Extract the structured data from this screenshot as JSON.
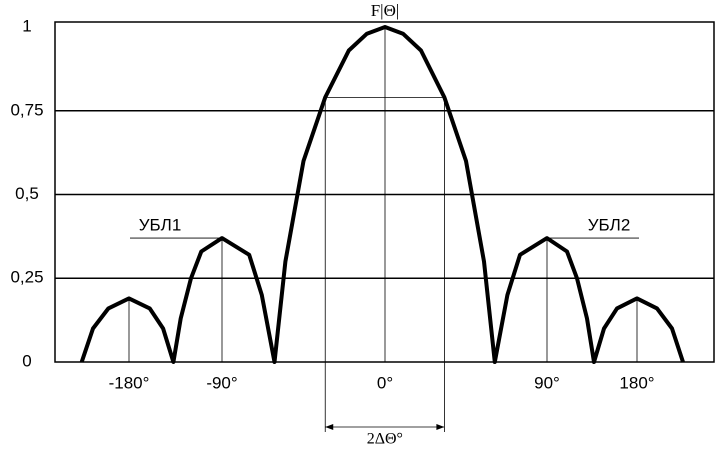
{
  "chart_data": {
    "type": "line",
    "title": "F|Θ|",
    "x": [
      -226,
      -215,
      -200,
      -180,
      -160,
      -147,
      -137,
      -130,
      -120,
      -110,
      -90,
      -75,
      -68,
      -61,
      -55,
      -45,
      -33,
      -20,
      -10,
      0,
      10,
      20,
      33,
      45,
      55,
      61,
      68,
      75,
      90,
      110,
      120,
      130,
      137,
      147,
      160,
      180,
      200,
      215,
      226
    ],
    "series": [
      {
        "color": "#000000",
        "values": [
          0,
          0.1,
          0.16,
          0.19,
          0.16,
          0.1,
          0,
          0.13,
          0.25,
          0.33,
          0.37,
          0.32,
          0.2,
          0,
          0.3,
          0.6,
          0.79,
          0.93,
          0.98,
          1,
          0.98,
          0.93,
          0.79,
          0.6,
          0.3,
          0,
          0.2,
          0.32,
          0.37,
          0.33,
          0.25,
          0.13,
          0,
          0.1,
          0.16,
          0.19,
          0.16,
          0.1,
          0
        ]
      }
    ],
    "xlim": [
      -252,
      257
    ],
    "xticks": [
      {
        "value": -180,
        "label": "-180°"
      },
      {
        "value": -90,
        "label": "-90°"
      },
      {
        "value": 0,
        "label": "0°"
      },
      {
        "value": 90,
        "label": "90°"
      },
      {
        "value": 180,
        "label": "180°"
      }
    ],
    "ylim": [
      0,
      1.015
    ],
    "yticks": [
      0,
      {
        "value": 0.25,
        "label": "0,25"
      },
      {
        "value": 0.5,
        "label": "0,5"
      },
      {
        "value": 0.75,
        "label": "0,75"
      },
      1
    ],
    "grid": true,
    "annotations": [
      {
        "text": "УБЛ1",
        "x": -90,
        "y": 0.37
      },
      {
        "text": "УБЛ2",
        "x": 90,
        "y": 0.37
      }
    ],
    "beamwidth": {
      "x": [
        -33,
        33
      ],
      "level": 0.79,
      "label": "2ΔΘ°"
    }
  }
}
